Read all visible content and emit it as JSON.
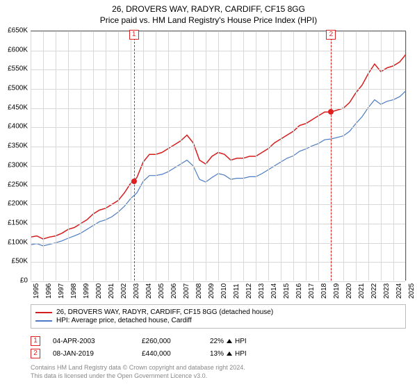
{
  "chart": {
    "type": "line",
    "title": "26, DROVERS WAY, RADYR, CARDIFF, CF15 8GG",
    "subtitle": "Price paid vs. HM Land Registry's House Price Index (HPI)",
    "background_color": "#ffffff",
    "grid_color": "#d8d8d8",
    "axis_color": "#666666",
    "title_fontsize": 12,
    "label_fontsize": 10,
    "x": {
      "min": 1995,
      "max": 2025,
      "ticks": [
        1995,
        1996,
        1997,
        1998,
        1999,
        2000,
        2001,
        2002,
        2003,
        2004,
        2005,
        2006,
        2007,
        2008,
        2009,
        2010,
        2011,
        2012,
        2013,
        2014,
        2015,
        2016,
        2017,
        2018,
        2019,
        2020,
        2021,
        2022,
        2023,
        2024,
        2025
      ]
    },
    "y": {
      "min": 0,
      "max": 650000,
      "tick_step": 50000,
      "tick_labels": [
        "£0",
        "£50K",
        "£100K",
        "£150K",
        "£200K",
        "£250K",
        "£300K",
        "£350K",
        "£400K",
        "£450K",
        "£500K",
        "£550K",
        "£600K",
        "£650K"
      ]
    },
    "series": [
      {
        "id": "property",
        "label": "26, DROVERS WAY, RADYR, CARDIFF, CF15 8GG (detached house)",
        "color": "#d61c1c",
        "line_width": 1.5,
        "data": [
          [
            1995,
            115000
          ],
          [
            1995.5,
            118000
          ],
          [
            1996,
            110000
          ],
          [
            1996.5,
            115000
          ],
          [
            1997,
            118000
          ],
          [
            1997.5,
            125000
          ],
          [
            1998,
            135000
          ],
          [
            1998.5,
            140000
          ],
          [
            1999,
            150000
          ],
          [
            1999.5,
            160000
          ],
          [
            2000,
            175000
          ],
          [
            2000.5,
            185000
          ],
          [
            2001,
            190000
          ],
          [
            2001.5,
            200000
          ],
          [
            2002,
            210000
          ],
          [
            2002.5,
            230000
          ],
          [
            2003,
            255000
          ],
          [
            2003.25,
            260000
          ],
          [
            2003.5,
            270000
          ],
          [
            2004,
            310000
          ],
          [
            2004.5,
            330000
          ],
          [
            2005,
            330000
          ],
          [
            2005.5,
            335000
          ],
          [
            2006,
            345000
          ],
          [
            2006.5,
            355000
          ],
          [
            2007,
            365000
          ],
          [
            2007.5,
            380000
          ],
          [
            2008,
            360000
          ],
          [
            2008.5,
            315000
          ],
          [
            2009,
            305000
          ],
          [
            2009.5,
            325000
          ],
          [
            2010,
            335000
          ],
          [
            2010.5,
            330000
          ],
          [
            2011,
            315000
          ],
          [
            2011.5,
            320000
          ],
          [
            2012,
            320000
          ],
          [
            2012.5,
            325000
          ],
          [
            2013,
            325000
          ],
          [
            2013.5,
            335000
          ],
          [
            2014,
            345000
          ],
          [
            2014.5,
            360000
          ],
          [
            2015,
            370000
          ],
          [
            2015.5,
            380000
          ],
          [
            2016,
            390000
          ],
          [
            2016.5,
            405000
          ],
          [
            2017,
            410000
          ],
          [
            2017.5,
            420000
          ],
          [
            2018,
            430000
          ],
          [
            2018.5,
            440000
          ],
          [
            2019,
            440000
          ],
          [
            2019.5,
            445000
          ],
          [
            2020,
            450000
          ],
          [
            2020.5,
            465000
          ],
          [
            2021,
            490000
          ],
          [
            2021.5,
            510000
          ],
          [
            2022,
            540000
          ],
          [
            2022.5,
            565000
          ],
          [
            2023,
            545000
          ],
          [
            2023.5,
            555000
          ],
          [
            2024,
            560000
          ],
          [
            2024.5,
            570000
          ],
          [
            2025,
            590000
          ]
        ]
      },
      {
        "id": "hpi",
        "label": "HPI: Average price, detached house, Cardiff",
        "color": "#4a7bc4",
        "line_width": 1.2,
        "data": [
          [
            1995,
            95000
          ],
          [
            1995.5,
            98000
          ],
          [
            1996,
            92000
          ],
          [
            1996.5,
            96000
          ],
          [
            1997,
            100000
          ],
          [
            1997.5,
            105000
          ],
          [
            1998,
            112000
          ],
          [
            1998.5,
            118000
          ],
          [
            1999,
            125000
          ],
          [
            1999.5,
            135000
          ],
          [
            2000,
            145000
          ],
          [
            2000.5,
            155000
          ],
          [
            2001,
            160000
          ],
          [
            2001.5,
            168000
          ],
          [
            2002,
            180000
          ],
          [
            2002.5,
            195000
          ],
          [
            2003,
            215000
          ],
          [
            2003.5,
            230000
          ],
          [
            2004,
            260000
          ],
          [
            2004.5,
            275000
          ],
          [
            2005,
            275000
          ],
          [
            2005.5,
            278000
          ],
          [
            2006,
            285000
          ],
          [
            2006.5,
            295000
          ],
          [
            2007,
            305000
          ],
          [
            2007.5,
            315000
          ],
          [
            2008,
            300000
          ],
          [
            2008.5,
            265000
          ],
          [
            2009,
            258000
          ],
          [
            2009.5,
            270000
          ],
          [
            2010,
            280000
          ],
          [
            2010.5,
            276000
          ],
          [
            2011,
            265000
          ],
          [
            2011.5,
            268000
          ],
          [
            2012,
            268000
          ],
          [
            2012.5,
            272000
          ],
          [
            2013,
            272000
          ],
          [
            2013.5,
            280000
          ],
          [
            2014,
            290000
          ],
          [
            2014.5,
            300000
          ],
          [
            2015,
            310000
          ],
          [
            2015.5,
            320000
          ],
          [
            2016,
            326000
          ],
          [
            2016.5,
            338000
          ],
          [
            2017,
            344000
          ],
          [
            2017.5,
            352000
          ],
          [
            2018,
            358000
          ],
          [
            2018.5,
            368000
          ],
          [
            2019,
            370000
          ],
          [
            2019.5,
            374000
          ],
          [
            2020,
            378000
          ],
          [
            2020.5,
            390000
          ],
          [
            2021,
            410000
          ],
          [
            2021.5,
            428000
          ],
          [
            2022,
            452000
          ],
          [
            2022.5,
            472000
          ],
          [
            2023,
            460000
          ],
          [
            2023.5,
            468000
          ],
          [
            2024,
            472000
          ],
          [
            2024.5,
            480000
          ],
          [
            2025,
            495000
          ]
        ]
      }
    ],
    "sale_markers": [
      {
        "n": "1",
        "year": 2003.26,
        "price": 260000
      },
      {
        "n": "2",
        "year": 2019.02,
        "price": 440000
      }
    ]
  },
  "legend": {
    "items": [
      {
        "color": "#d61c1c",
        "label": "26, DROVERS WAY, RADYR, CARDIFF, CF15 8GG (detached house)"
      },
      {
        "color": "#4a7bc4",
        "label": "HPI: Average price, detached house, Cardiff"
      }
    ]
  },
  "sales": [
    {
      "n": "1",
      "date": "04-APR-2003",
      "price": "£260,000",
      "delta": "22%",
      "vs": "HPI"
    },
    {
      "n": "2",
      "date": "08-JAN-2019",
      "price": "£440,000",
      "delta": "13%",
      "vs": "HPI"
    }
  ],
  "footer": {
    "line1": "Contains HM Land Registry data © Crown copyright and database right 2024.",
    "line2": "This data is licensed under the Open Government Licence v3.0."
  }
}
